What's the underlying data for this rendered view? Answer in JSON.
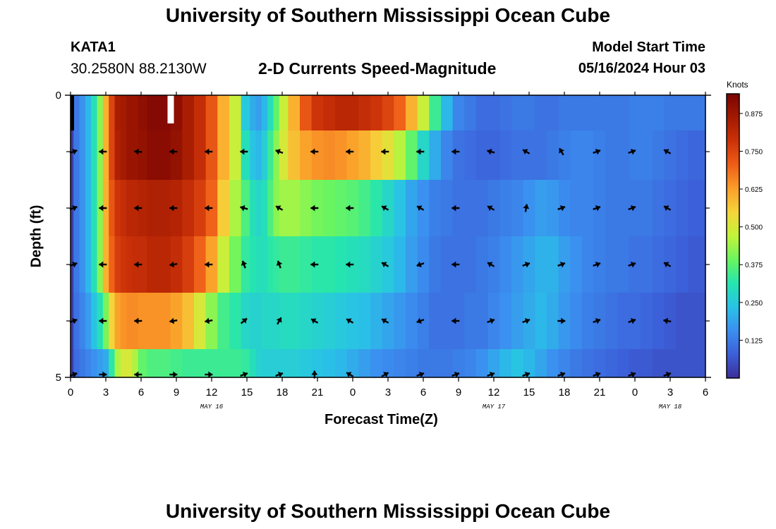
{
  "page": {
    "title_top": "University of Southern Mississippi Ocean Cube",
    "title_bottom": "University of Southern Mississippi Ocean Cube",
    "station": "KATA1",
    "coordinates": "30.2580N  88.2130W",
    "model_start_label": "Model Start Time",
    "model_start_value": "05/16/2024 Hour 03"
  },
  "chart_data": {
    "type": "heatmap",
    "title": "2-D Currents Speed-Magnitude",
    "xlabel": "Forecast Time(Z)",
    "ylabel": "Depth (ft)",
    "colorbar_label": "Knots",
    "x_hours_range": [
      0,
      54
    ],
    "y_range": [
      0,
      5
    ],
    "x_ticks": [
      "0",
      "3",
      "6",
      "9",
      "12",
      "15",
      "18",
      "21",
      "0",
      "3",
      "6",
      "9",
      "12",
      "15",
      "18",
      "21",
      "0",
      "3",
      "6"
    ],
    "y_ticks": [
      "0",
      "5"
    ],
    "date_labels": [
      {
        "text": "MAY 16",
        "hour": 12
      },
      {
        "text": "MAY 17",
        "hour": 36
      },
      {
        "text": "MAY 18",
        "hour": 51
      }
    ],
    "colorbar_ticks": [
      "0.875",
      "0.750",
      "0.625",
      "0.500",
      "0.375",
      "0.250",
      "0.125"
    ],
    "colorbar_values": [
      0.875,
      0.75,
      0.625,
      0.5,
      0.375,
      0.25,
      0.125
    ],
    "colorbar_range": [
      0,
      0.94
    ],
    "colorscale": [
      "#3b2f9a",
      "#3c5fd8",
      "#3b8ff0",
      "#29c2e6",
      "#25e5b0",
      "#6af55f",
      "#c3f33a",
      "#f5d53a",
      "#fb9e2a",
      "#ef5e18",
      "#cc3208",
      "#a31a02",
      "#7a0403"
    ],
    "column_hours": [
      0,
      0.5,
      1,
      1.5,
      2,
      2.5,
      3,
      3.5,
      4,
      4.5,
      5,
      5.5,
      6,
      7,
      8,
      9,
      10,
      11,
      12,
      13,
      14,
      15,
      15.5,
      16,
      16.5,
      17,
      17.5,
      18,
      19,
      20,
      21,
      22,
      23,
      24,
      25,
      26,
      27,
      28,
      29,
      30,
      31,
      32,
      33,
      34,
      35,
      36,
      37,
      38,
      39,
      40,
      41,
      42,
      43,
      44,
      45,
      46,
      47,
      48,
      49,
      50,
      51,
      52,
      53,
      54
    ],
    "layer_depths": [
      0.25,
      1.0,
      2.0,
      3.0,
      4.0,
      5.0
    ],
    "speed_knots": [
      [
        0.02,
        0.12,
        0.16,
        0.22,
        0.3,
        0.42,
        0.6,
        0.75,
        0.85,
        0.86,
        0.88,
        0.88,
        0.9,
        0.92,
        0.92,
        0.9,
        0.85,
        0.8,
        0.72,
        0.6,
        0.48,
        0.25,
        0.2,
        0.18,
        0.22,
        0.3,
        0.38,
        0.48,
        0.6,
        0.72,
        0.78,
        0.8,
        0.82,
        0.82,
        0.8,
        0.78,
        0.75,
        0.7,
        0.6,
        0.48,
        0.34,
        0.22,
        0.14,
        0.12,
        0.1,
        0.1,
        0.11,
        0.12,
        0.12,
        0.11,
        0.11,
        0.12,
        0.12,
        0.12,
        0.12,
        0.12,
        0.12,
        0.13,
        0.13,
        0.13,
        0.12,
        0.12,
        0.12,
        0.12
      ],
      [
        0.02,
        0.12,
        0.16,
        0.22,
        0.3,
        0.42,
        0.6,
        0.75,
        0.84,
        0.86,
        0.88,
        0.88,
        0.89,
        0.91,
        0.91,
        0.89,
        0.85,
        0.8,
        0.72,
        0.6,
        0.48,
        0.3,
        0.24,
        0.22,
        0.26,
        0.34,
        0.42,
        0.5,
        0.58,
        0.62,
        0.64,
        0.65,
        0.64,
        0.62,
        0.6,
        0.56,
        0.52,
        0.46,
        0.38,
        0.28,
        0.2,
        0.14,
        0.11,
        0.1,
        0.09,
        0.09,
        0.1,
        0.11,
        0.11,
        0.11,
        0.12,
        0.13,
        0.14,
        0.14,
        0.13,
        0.12,
        0.12,
        0.13,
        0.13,
        0.12,
        0.11,
        0.1,
        0.09,
        0.09
      ],
      [
        0.02,
        0.12,
        0.16,
        0.22,
        0.3,
        0.42,
        0.6,
        0.72,
        0.78,
        0.8,
        0.82,
        0.82,
        0.83,
        0.84,
        0.84,
        0.83,
        0.8,
        0.76,
        0.7,
        0.56,
        0.45,
        0.36,
        0.3,
        0.28,
        0.3,
        0.36,
        0.42,
        0.44,
        0.44,
        0.42,
        0.4,
        0.39,
        0.38,
        0.37,
        0.35,
        0.32,
        0.28,
        0.24,
        0.19,
        0.16,
        0.13,
        0.12,
        0.11,
        0.11,
        0.11,
        0.12,
        0.13,
        0.14,
        0.16,
        0.18,
        0.17,
        0.15,
        0.14,
        0.14,
        0.13,
        0.12,
        0.12,
        0.12,
        0.12,
        0.11,
        0.1,
        0.09,
        0.08,
        0.08
      ],
      [
        0.02,
        0.12,
        0.16,
        0.22,
        0.3,
        0.42,
        0.6,
        0.7,
        0.76,
        0.78,
        0.79,
        0.8,
        0.8,
        0.82,
        0.82,
        0.8,
        0.76,
        0.7,
        0.62,
        0.48,
        0.4,
        0.33,
        0.31,
        0.3,
        0.3,
        0.32,
        0.33,
        0.34,
        0.34,
        0.33,
        0.32,
        0.32,
        0.31,
        0.3,
        0.29,
        0.27,
        0.25,
        0.22,
        0.18,
        0.15,
        0.12,
        0.11,
        0.11,
        0.11,
        0.12,
        0.13,
        0.15,
        0.17,
        0.19,
        0.21,
        0.21,
        0.18,
        0.16,
        0.14,
        0.13,
        0.12,
        0.12,
        0.11,
        0.11,
        0.1,
        0.09,
        0.08,
        0.07,
        0.07
      ],
      [
        0.02,
        0.11,
        0.14,
        0.18,
        0.24,
        0.3,
        0.4,
        0.55,
        0.62,
        0.64,
        0.65,
        0.65,
        0.64,
        0.64,
        0.64,
        0.62,
        0.58,
        0.5,
        0.42,
        0.35,
        0.32,
        0.28,
        0.27,
        0.27,
        0.28,
        0.28,
        0.28,
        0.29,
        0.29,
        0.28,
        0.27,
        0.26,
        0.25,
        0.24,
        0.23,
        0.21,
        0.19,
        0.17,
        0.15,
        0.13,
        0.11,
        0.11,
        0.11,
        0.12,
        0.12,
        0.14,
        0.16,
        0.18,
        0.2,
        0.22,
        0.2,
        0.17,
        0.15,
        0.13,
        0.12,
        0.11,
        0.1,
        0.1,
        0.09,
        0.08,
        0.07,
        0.06,
        0.06,
        0.06
      ],
      [
        0.02,
        0.1,
        0.12,
        0.14,
        0.16,
        0.18,
        0.2,
        0.32,
        0.45,
        0.5,
        0.5,
        0.45,
        0.38,
        0.36,
        0.36,
        0.35,
        0.34,
        0.34,
        0.34,
        0.34,
        0.34,
        0.33,
        0.3,
        0.27,
        0.26,
        0.26,
        0.26,
        0.26,
        0.26,
        0.25,
        0.24,
        0.23,
        0.22,
        0.2,
        0.18,
        0.16,
        0.15,
        0.14,
        0.13,
        0.12,
        0.12,
        0.12,
        0.13,
        0.14,
        0.16,
        0.19,
        0.22,
        0.24,
        0.22,
        0.19,
        0.16,
        0.14,
        0.12,
        0.11,
        0.1,
        0.09,
        0.08,
        0.07,
        0.07,
        0.06,
        0.06,
        0.06,
        0.06,
        0.06
      ]
    ],
    "vector_rows_depth": [
      1.0,
      2.0,
      3.0,
      4.0,
      5.0
    ],
    "vector_hours": [
      0.25,
      2.75,
      5.75,
      8.75,
      11.75,
      14.75,
      17.75,
      20.75,
      23.75,
      26.75,
      29.75,
      32.75,
      35.75,
      38.75,
      41.75,
      44.75,
      47.75,
      50.75
    ],
    "vector_directions_deg": [
      [
        20,
        180,
        175,
        180,
        180,
        180,
        160,
        180,
        180,
        180,
        180,
        180,
        165,
        150,
        120,
        20,
        20,
        150
      ],
      [
        20,
        180,
        180,
        180,
        180,
        165,
        150,
        180,
        180,
        150,
        150,
        180,
        150,
        80,
        20,
        20,
        20,
        150
      ],
      [
        20,
        180,
        180,
        190,
        180,
        110,
        110,
        180,
        180,
        150,
        200,
        180,
        150,
        20,
        20,
        20,
        20,
        150
      ],
      [
        20,
        180,
        180,
        190,
        190,
        40,
        60,
        150,
        150,
        150,
        200,
        180,
        20,
        20,
        0,
        20,
        20,
        170
      ],
      [
        20,
        0,
        180,
        0,
        0,
        20,
        20,
        90,
        150,
        30,
        20,
        20,
        20,
        20,
        20,
        20,
        20,
        20
      ]
    ]
  }
}
